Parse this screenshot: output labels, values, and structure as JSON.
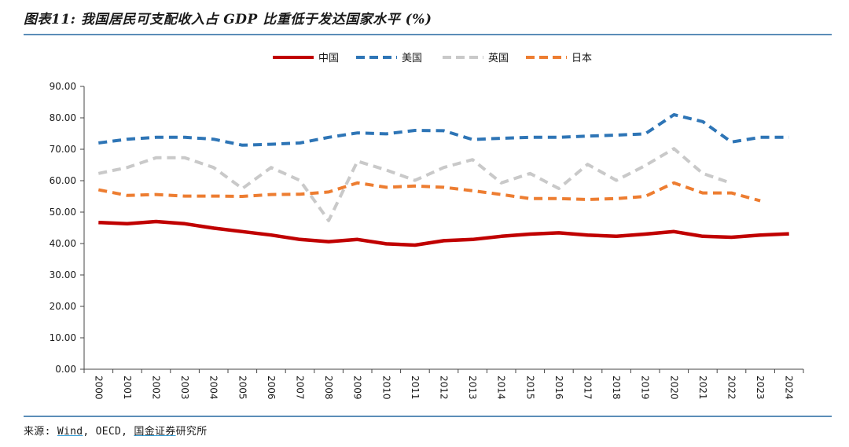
{
  "header": {
    "title": "图表11: 我国居民可支配收入占 GDP 比重低于发达国家水平 (%)"
  },
  "footer": {
    "source_prefix": "来源: ",
    "source_wind": "Wind",
    "source_middle": ", OECD, ",
    "source_org": "国金证券",
    "source_suffix": "研究所"
  },
  "chart_data": {
    "type": "line",
    "title": "",
    "xlabel": "",
    "ylabel": "",
    "ylim": [
      0,
      90
    ],
    "yticks": [
      "0.00",
      "10.00",
      "20.00",
      "30.00",
      "40.00",
      "50.00",
      "60.00",
      "70.00",
      "80.00",
      "90.00"
    ],
    "categories": [
      "2000",
      "2001",
      "2002",
      "2003",
      "2004",
      "2005",
      "2006",
      "2007",
      "2008",
      "2009",
      "2010",
      "2011",
      "2012",
      "2013",
      "2014",
      "2015",
      "2016",
      "2017",
      "2018",
      "2019",
      "2020",
      "2021",
      "2022",
      "2023",
      "2024"
    ],
    "legend_position": "top-center",
    "grid": false,
    "series": [
      {
        "name": "中国",
        "color": "#c00000",
        "dashed": false,
        "values": [
          46.7,
          46.3,
          47.0,
          46.3,
          44.9,
          43.8,
          42.7,
          41.3,
          40.6,
          41.3,
          39.9,
          39.5,
          40.9,
          41.3,
          42.3,
          43.0,
          43.4,
          42.7,
          42.3,
          43.0,
          43.8,
          42.3,
          42.0,
          42.7,
          43.1
        ]
      },
      {
        "name": "美国",
        "color": "#2e75b6",
        "dashed": true,
        "values": [
          72.0,
          73.2,
          73.8,
          73.8,
          73.2,
          71.3,
          71.6,
          72.0,
          73.8,
          75.2,
          74.9,
          76.0,
          75.9,
          73.1,
          73.5,
          73.8,
          73.8,
          74.2,
          74.5,
          74.9,
          81.0,
          78.8,
          72.3,
          73.8,
          73.8
        ]
      },
      {
        "name": "英国",
        "color": "#c9c9c9",
        "dashed": true,
        "values": [
          62.3,
          64.2,
          67.3,
          67.3,
          64.2,
          57.5,
          64.2,
          60.1,
          47.3,
          66.2,
          63.4,
          60.1,
          64.2,
          66.7,
          59.3,
          62.3,
          57.5,
          65.2,
          60.1,
          64.8,
          70.2,
          62.3,
          59.2,
          null,
          null
        ]
      },
      {
        "name": "日本",
        "color": "#ed7d31",
        "dashed": true,
        "values": [
          57.1,
          55.3,
          55.6,
          55.1,
          55.1,
          55.0,
          55.6,
          55.7,
          56.4,
          59.3,
          57.9,
          58.3,
          57.9,
          56.8,
          55.6,
          54.3,
          54.3,
          54.0,
          54.3,
          55.0,
          59.3,
          56.1,
          56.1,
          53.6,
          null
        ]
      }
    ]
  }
}
